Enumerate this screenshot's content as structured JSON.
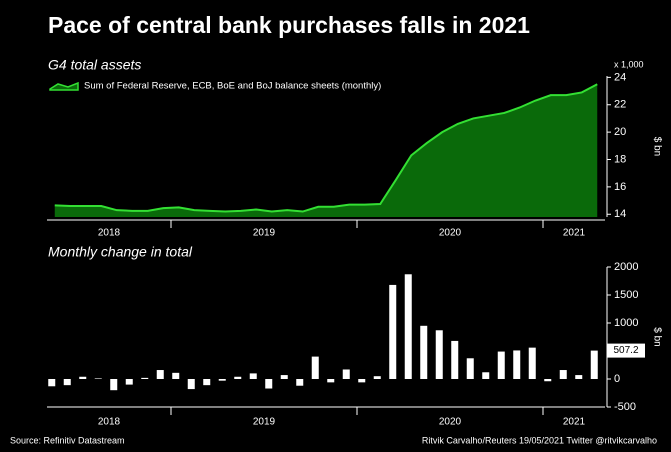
{
  "title": "Pace of central bank purchases falls in 2021",
  "source": "Source: Refinitiv Datastream",
  "credit": "Ritvik Carvalho/Reuters 19/05/2021 Twitter @ritvikcarvalho",
  "chart_data": [
    {
      "type": "area",
      "subtitle": "G4 total assets",
      "categories": [
        "2018",
        "2018",
        "2018",
        "2018",
        "2018",
        "2018",
        "2018",
        "2018",
        "2019",
        "2019",
        "2019",
        "2019",
        "2019",
        "2019",
        "2019",
        "2019",
        "2019",
        "2019",
        "2019",
        "2019",
        "2020",
        "2020",
        "2020",
        "2020",
        "2020",
        "2020",
        "2020",
        "2020",
        "2020",
        "2020",
        "2020",
        "2020",
        "2021",
        "2021",
        "2021",
        "2021"
      ],
      "series": [
        {
          "name": "Sum of Federal Reserve, ECB, BoE and BoJ balance sheets (monthly)",
          "color": "#33e033",
          "fill": "#0a6a0a",
          "values": [
            14.65,
            14.6,
            14.6,
            14.6,
            14.3,
            14.25,
            14.25,
            14.45,
            14.5,
            14.3,
            14.25,
            14.2,
            14.25,
            14.35,
            14.2,
            14.3,
            14.2,
            14.55,
            14.55,
            14.7,
            14.7,
            14.75,
            16.5,
            18.3,
            19.2,
            20.0,
            20.6,
            21.0,
            21.2,
            21.4,
            21.8,
            22.3,
            22.7,
            22.7,
            22.9,
            23.5
          ]
        }
      ],
      "ylim": [
        13.8,
        24.1
      ],
      "yticks": [
        14,
        16,
        18,
        20,
        22,
        24
      ],
      "y_unit": "x 1,000",
      "ylabel": "$ bn"
    },
    {
      "type": "bar",
      "subtitle": "Monthly change in total",
      "categories": [
        "2018",
        "2018",
        "2018",
        "2018",
        "2018",
        "2018",
        "2018",
        "2018",
        "2019",
        "2019",
        "2019",
        "2019",
        "2019",
        "2019",
        "2019",
        "2019",
        "2019",
        "2019",
        "2019",
        "2019",
        "2020",
        "2020",
        "2020",
        "2020",
        "2020",
        "2020",
        "2020",
        "2020",
        "2020",
        "2020",
        "2020",
        "2020",
        "2021",
        "2021",
        "2021",
        "2021"
      ],
      "values": [
        -130,
        -110,
        40,
        10,
        -200,
        -100,
        20,
        160,
        110,
        -180,
        -110,
        -30,
        40,
        100,
        -170,
        70,
        -120,
        400,
        -60,
        170,
        -60,
        50,
        1680,
        1870,
        950,
        870,
        680,
        370,
        120,
        490,
        510,
        560,
        -40,
        160,
        70,
        507.2
      ],
      "value_labels": [
        null,
        null,
        null,
        null,
        null,
        null,
        null,
        null,
        null,
        null,
        null,
        null,
        null,
        null,
        null,
        null,
        null,
        null,
        null,
        null,
        null,
        null,
        null,
        null,
        null,
        null,
        null,
        null,
        null,
        null,
        null,
        null,
        null,
        null,
        null,
        "507.2"
      ],
      "color": "#ffffff",
      "ylim": [
        -500,
        2000
      ],
      "yticks": [
        -500,
        0,
        500,
        1000,
        1500,
        2000
      ],
      "ylabel": "$ bn"
    }
  ]
}
